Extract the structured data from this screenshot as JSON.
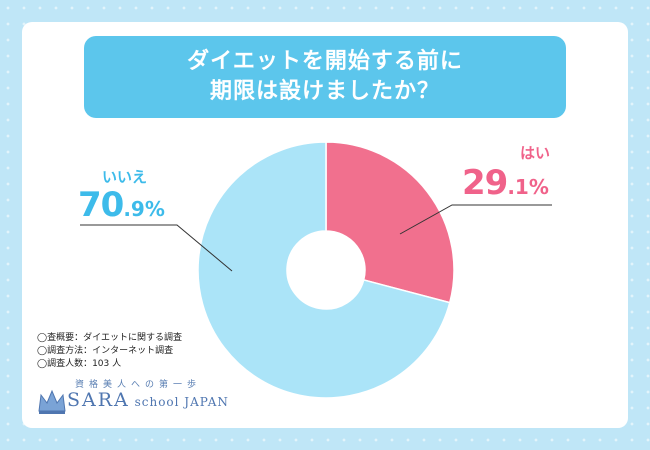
{
  "title_lines": [
    "ダイエットを開始する前に",
    "期限は設けましたか？"
  ],
  "chart_data": {
    "type": "pie",
    "title": "ダイエットを開始する前に期限は設けましたか？",
    "slices": [
      {
        "label": "はい",
        "value_int": "29",
        "value_dec": ".1",
        "unit": "%",
        "value": 29.1,
        "color": "#f1708e"
      },
      {
        "label": "いいえ",
        "value_int": "70",
        "value_dec": ".9",
        "unit": "%",
        "value": 70.9,
        "color": "#abe4f8"
      }
    ],
    "label_color": "#f0628a",
    "label_color_2": "#3dbbea"
  },
  "notes": [
    "◯査概要：ダイエットに関する調査",
    "◯調査方法：インターネット調査",
    "◯調査人数：103 人"
  ],
  "logo": {
    "tagline": "資格美人への第一歩",
    "brand": "SARA",
    "brand_suffix": " school JAPAN"
  }
}
